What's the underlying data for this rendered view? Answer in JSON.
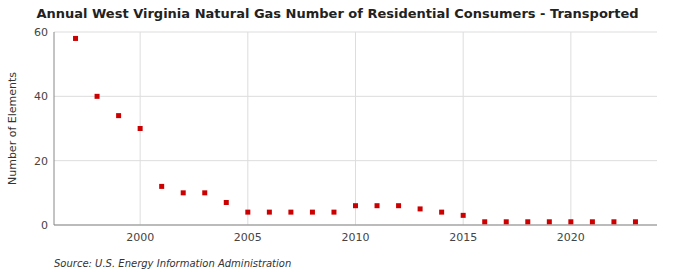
{
  "chart_data": {
    "type": "scatter",
    "title": "Annual West Virginia Natural Gas Number of Residential Consumers - Transported",
    "ylabel": "Number of Elements",
    "source": "Source: U.S. Energy Information Administration",
    "x": [
      1997,
      1998,
      1999,
      2000,
      2001,
      2002,
      2003,
      2004,
      2005,
      2006,
      2007,
      2008,
      2009,
      2010,
      2011,
      2012,
      2013,
      2014,
      2015,
      2016,
      2017,
      2018,
      2019,
      2020,
      2021,
      2022,
      2023
    ],
    "values": [
      58,
      40,
      34,
      30,
      12,
      10,
      10,
      7,
      4,
      4,
      4,
      4,
      4,
      6,
      6,
      6,
      5,
      4,
      3,
      1,
      1,
      1,
      1,
      1,
      1,
      1,
      1
    ],
    "color": "#CC0000",
    "marker": "square",
    "xlim": [
      1996,
      2024
    ],
    "ylim": [
      0,
      60
    ],
    "xticks": [
      2000,
      2005,
      2010,
      2015,
      2020
    ],
    "yticks": [
      0,
      20,
      40,
      60
    ],
    "grid": true
  }
}
